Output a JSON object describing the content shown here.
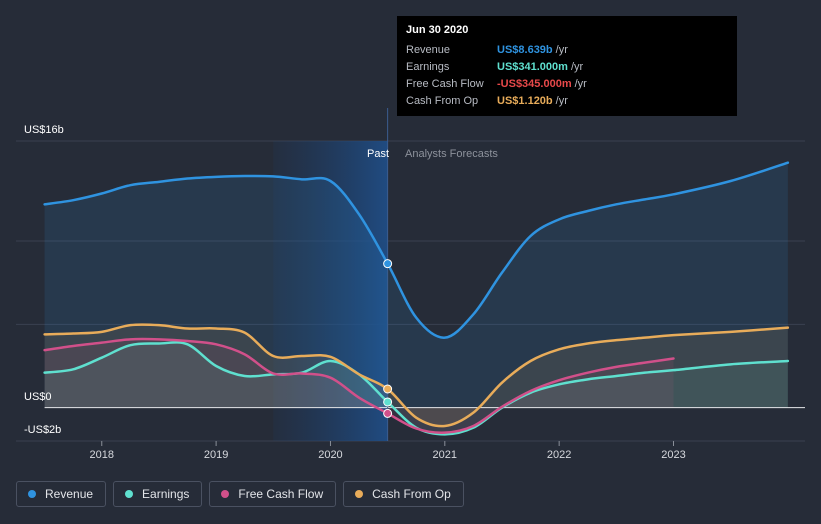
{
  "chart_data": {
    "type": "line",
    "y_axis_labels": {
      "top": "US$16b",
      "zero": "US$0",
      "bottom": "-US$2b"
    },
    "ylim": [
      -2,
      16
    ],
    "x_ticks": [
      {
        "label": "2018",
        "x": 2018
      },
      {
        "label": "2019",
        "x": 2019
      },
      {
        "label": "2020",
        "x": 2020
      },
      {
        "label": "2021",
        "x": 2021
      },
      {
        "label": "2022",
        "x": 2022
      },
      {
        "label": "2023",
        "x": 2023
      }
    ],
    "xlim": [
      2017.25,
      2024.15
    ],
    "past_label": "Past",
    "forecast_label": "Analysts Forecasts",
    "past_end_x": 2020.5,
    "past_start_x": 2019.5,
    "series": [
      {
        "name": "Revenue",
        "color": "#2f93e0",
        "x": [
          2017.5,
          2017.75,
          2018.0,
          2018.25,
          2018.5,
          2018.75,
          2019.0,
          2019.25,
          2019.5,
          2019.75,
          2020.0,
          2020.25,
          2020.5,
          2020.75,
          2021.0,
          2021.25,
          2021.5,
          2021.75,
          2022.0,
          2022.25,
          2022.5,
          2022.75,
          2023.0,
          2023.5,
          2024.0
        ],
        "y": [
          12.2,
          12.45,
          12.85,
          13.35,
          13.55,
          13.75,
          13.85,
          13.9,
          13.88,
          13.7,
          13.6,
          11.6,
          8.64,
          5.4,
          4.2,
          5.6,
          8.1,
          10.3,
          11.3,
          11.8,
          12.2,
          12.5,
          12.8,
          13.6,
          14.7
        ]
      },
      {
        "name": "Earnings",
        "color": "#5fe0cf",
        "x": [
          2017.5,
          2017.75,
          2018.0,
          2018.25,
          2018.5,
          2018.75,
          2019.0,
          2019.25,
          2019.5,
          2019.75,
          2020.0,
          2020.25,
          2020.5,
          2020.75,
          2021.0,
          2021.25,
          2021.5,
          2021.75,
          2022.0,
          2022.25,
          2022.5,
          2022.75,
          2023.0,
          2023.5,
          2024.0
        ],
        "y": [
          2.1,
          2.3,
          3.0,
          3.75,
          3.85,
          3.8,
          2.5,
          1.9,
          2.0,
          2.1,
          2.8,
          2.0,
          0.341,
          -1.2,
          -1.6,
          -1.2,
          0.0,
          0.9,
          1.4,
          1.7,
          1.9,
          2.1,
          2.25,
          2.6,
          2.8
        ]
      },
      {
        "name": "Free Cash Flow",
        "color": "#d1508a",
        "x": [
          2017.5,
          2017.75,
          2018.0,
          2018.25,
          2018.5,
          2018.75,
          2019.0,
          2019.25,
          2019.5,
          2019.75,
          2020.0,
          2020.25,
          2020.5,
          2020.75,
          2021.0,
          2021.25,
          2021.5,
          2021.75,
          2022.0,
          2022.25,
          2022.5,
          2022.75,
          2023.0
        ],
        "y": [
          3.45,
          3.7,
          3.9,
          4.1,
          4.1,
          4.0,
          3.8,
          3.2,
          2.05,
          2.05,
          1.8,
          0.6,
          -0.345,
          -1.25,
          -1.5,
          -1.1,
          0.05,
          1.0,
          1.65,
          2.1,
          2.45,
          2.7,
          2.95
        ]
      },
      {
        "name": "Cash From Op",
        "color": "#e8ac5a",
        "x": [
          2017.5,
          2017.75,
          2018.0,
          2018.25,
          2018.5,
          2018.75,
          2019.0,
          2019.25,
          2019.5,
          2019.75,
          2020.0,
          2020.25,
          2020.5,
          2020.75,
          2021.0,
          2021.25,
          2021.5,
          2021.75,
          2022.0,
          2022.25,
          2022.5,
          2022.75,
          2023.0,
          2023.5,
          2024.0
        ],
        "y": [
          4.4,
          4.45,
          4.55,
          4.95,
          4.95,
          4.75,
          4.75,
          4.5,
          3.1,
          3.1,
          3.05,
          2.0,
          1.12,
          -0.6,
          -1.1,
          -0.3,
          1.5,
          2.8,
          3.5,
          3.85,
          4.05,
          4.2,
          4.35,
          4.55,
          4.8
        ]
      }
    ],
    "highlight": {
      "x": 2020.5,
      "label": "Jun 30 2020"
    }
  },
  "tooltip": {
    "title": "Jun 30 2020",
    "rows": [
      {
        "label": "Revenue",
        "value": "US$8.639b",
        "unit": "/yr",
        "color": "#2f93e0"
      },
      {
        "label": "Earnings",
        "value": "US$341.000m",
        "unit": "/yr",
        "color": "#5fe0cf"
      },
      {
        "label": "Free Cash Flow",
        "value": "-US$345.000m",
        "unit": "/yr",
        "color": "#e8494a"
      },
      {
        "label": "Cash From Op",
        "value": "US$1.120b",
        "unit": "/yr",
        "color": "#e8ac5a"
      }
    ]
  },
  "legend": [
    {
      "label": "Revenue",
      "color": "#2f93e0"
    },
    {
      "label": "Earnings",
      "color": "#5fe0cf"
    },
    {
      "label": "Free Cash Flow",
      "color": "#d1508a"
    },
    {
      "label": "Cash From Op",
      "color": "#e8ac5a"
    }
  ]
}
